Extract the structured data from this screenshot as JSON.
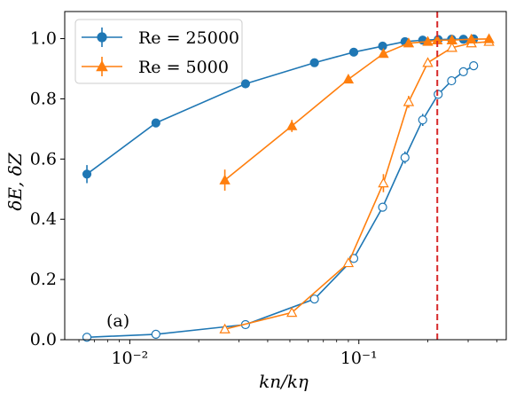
{
  "chart_data": {
    "type": "line",
    "xscale": "log",
    "xlim": [
      0.0052,
      0.44
    ],
    "ylim": [
      0.0,
      1.09
    ],
    "x_ticks": [
      {
        "value": 0.01,
        "label": "10⁻²"
      },
      {
        "value": 0.1,
        "label": "10⁻¹"
      }
    ],
    "y_ticks": [
      {
        "value": 0.0,
        "label": "0.0"
      },
      {
        "value": 0.2,
        "label": "0.2"
      },
      {
        "value": 0.4,
        "label": "0.4"
      },
      {
        "value": 0.6,
        "label": "0.6"
      },
      {
        "value": 0.8,
        "label": "0.8"
      },
      {
        "value": 1.0,
        "label": "1.0"
      }
    ],
    "xlabel": "kn/kη",
    "ylabel": "δE, δZ",
    "annotation": "(a)",
    "vline": {
      "x": 0.22,
      "color": "#d62728",
      "style": "dashed"
    },
    "legend": {
      "placement": "top-left"
    },
    "series": [
      {
        "name": "Re = 25000",
        "legend": true,
        "color": "#1f77b4",
        "marker": "circle",
        "filled": true,
        "x": [
          0.0065,
          0.013,
          0.032,
          0.064,
          0.095,
          0.127,
          0.159,
          0.19,
          0.222,
          0.254,
          0.286,
          0.317
        ],
        "y": [
          0.55,
          0.72,
          0.85,
          0.92,
          0.955,
          0.975,
          0.99,
          0.995,
          0.997,
          0.998,
          0.998,
          0.999
        ],
        "err": [
          0.03,
          0.01,
          0.01,
          0.005,
          0.005,
          0.005,
          0.003,
          0.003,
          0.002,
          0.002,
          0.002,
          0.002
        ]
      },
      {
        "name": "Re = 5000",
        "legend": true,
        "color": "#ff7f0e",
        "marker": "triangle",
        "filled": true,
        "x": [
          0.026,
          0.051,
          0.09,
          0.128,
          0.165,
          0.2,
          0.22,
          0.255,
          0.31,
          0.37
        ],
        "y": [
          0.53,
          0.71,
          0.865,
          0.95,
          0.985,
          0.99,
          0.995,
          0.995,
          0.998,
          0.999
        ],
        "err": [
          0.035,
          0.02,
          0.01,
          0.01,
          0.005,
          0.003,
          0.003,
          0.003,
          0.002,
          0.002
        ]
      },
      {
        "name": "Re = 25000 (δZ)",
        "legend": false,
        "color": "#1f77b4",
        "marker": "circle",
        "filled": false,
        "x": [
          0.0065,
          0.013,
          0.032,
          0.064,
          0.095,
          0.127,
          0.159,
          0.19,
          0.222,
          0.254,
          0.286,
          0.317
        ],
        "y": [
          0.008,
          0.018,
          0.05,
          0.135,
          0.27,
          0.44,
          0.605,
          0.73,
          0.815,
          0.86,
          0.89,
          0.91
        ],
        "err": [
          0,
          0,
          0,
          0,
          0,
          0,
          0.02,
          0.02,
          0.015,
          0,
          0,
          0
        ]
      },
      {
        "name": "Re = 5000 (δZ)",
        "legend": false,
        "color": "#ff7f0e",
        "marker": "triangle",
        "filled": false,
        "x": [
          0.026,
          0.051,
          0.09,
          0.128,
          0.165,
          0.2,
          0.255,
          0.31,
          0.37
        ],
        "y": [
          0.035,
          0.09,
          0.255,
          0.52,
          0.79,
          0.92,
          0.97,
          0.985,
          0.99
        ],
        "err": [
          0,
          0,
          0,
          0.03,
          0.02,
          0.01,
          0.005,
          0.005,
          0.005
        ]
      }
    ]
  }
}
